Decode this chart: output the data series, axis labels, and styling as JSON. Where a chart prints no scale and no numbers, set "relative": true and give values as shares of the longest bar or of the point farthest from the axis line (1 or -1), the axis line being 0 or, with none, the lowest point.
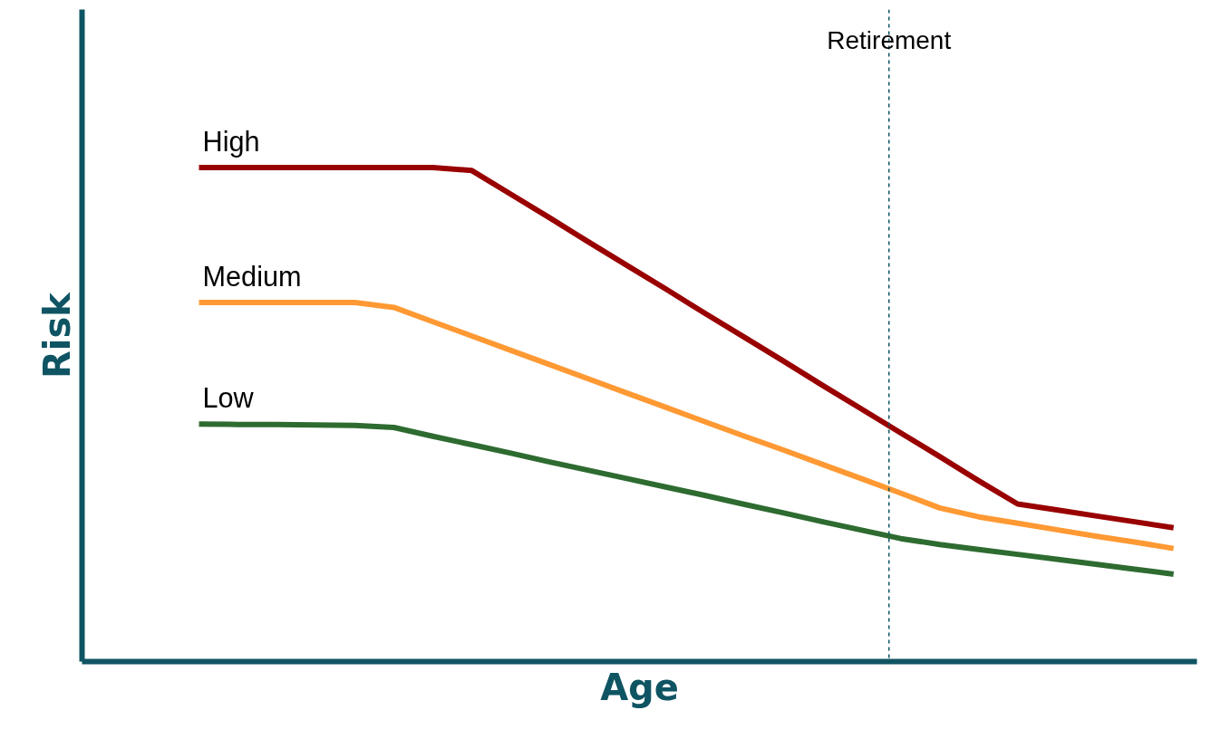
{
  "chart_data": {
    "type": "line",
    "relative": true,
    "xlabel": "Age",
    "ylabel": "Risk",
    "line_style": "solid",
    "categories": [
      null,
      null,
      null,
      null,
      null,
      null,
      null,
      null,
      null,
      null,
      null,
      null,
      null,
      null,
      null,
      null,
      null,
      null,
      null,
      null,
      null,
      null,
      null,
      null,
      null,
      null
    ],
    "series": [
      {
        "name": "High",
        "color": "#990000",
        "values": [
          1,
          1,
          1,
          1,
          1,
          1,
          1,
          0.994,
          0.946,
          0.898,
          0.849,
          0.801,
          0.753,
          0.704,
          0.656,
          0.608,
          0.559,
          0.511,
          0.463,
          0.415,
          0.366,
          0.319,
          0.307,
          0.295,
          0.283,
          0.271
        ]
      },
      {
        "name": "Medium",
        "color": "#ff9933",
        "values": [
          0.727,
          0.727,
          0.727,
          0.727,
          0.727,
          0.717,
          0.688,
          0.659,
          0.63,
          0.601,
          0.572,
          0.543,
          0.514,
          0.485,
          0.456,
          0.428,
          0.399,
          0.37,
          0.341,
          0.311,
          0.293,
          0.28,
          0.267,
          0.254,
          0.242,
          0.229
        ]
      },
      {
        "name": "Low",
        "color": "#2e6b30",
        "values": [
          0.481,
          0.48,
          0.48,
          0.479,
          0.478,
          0.474,
          0.456,
          0.439,
          0.422,
          0.404,
          0.387,
          0.37,
          0.353,
          0.336,
          0.318,
          0.301,
          0.283,
          0.266,
          0.249,
          0.237,
          0.227,
          0.217,
          0.207,
          0.197,
          0.187,
          0.177
        ]
      }
    ],
    "annotations": [
      "Retirement"
    ]
  }
}
